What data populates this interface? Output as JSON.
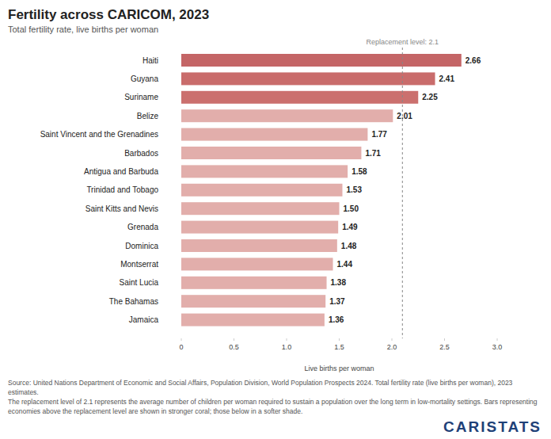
{
  "chart_data": {
    "type": "bar",
    "orientation": "horizontal",
    "title": "Fertility across CARICOM, 2023",
    "subtitle": "Total fertility rate, live births per woman",
    "x_label": "Live births per woman",
    "categories": [
      "Haiti",
      "Guyana",
      "Suriname",
      "Belize",
      "Saint Vincent and the Grenadines",
      "Barbados",
      "Antigua and Barbuda",
      "Trinidad and Tobago",
      "Saint Kitts and Nevis",
      "Grenada",
      "Dominica",
      "Montserrat",
      "Saint Lucia",
      "The Bahamas",
      "Jamaica"
    ],
    "values": [
      2.66,
      2.41,
      2.25,
      2.01,
      1.77,
      1.71,
      1.58,
      1.53,
      1.5,
      1.49,
      1.48,
      1.44,
      1.38,
      1.37,
      1.36
    ],
    "value_labels": [
      "2.66",
      "2.41",
      "2.25",
      "2.01",
      "1.77",
      "1.71",
      "1.58",
      "1.53",
      "1.50",
      "1.49",
      "1.48",
      "1.44",
      "1.38",
      "1.37",
      "1.36"
    ],
    "colors": [
      "#c46566",
      "#c96c6b",
      "#cb706e",
      "#e2aeab",
      "#e2aeab",
      "#e2aeab",
      "#e2aeab",
      "#e2aeab",
      "#e2aeab",
      "#e2aeab",
      "#e2aeab",
      "#e2aeab",
      "#e2aeab",
      "#e2aeab",
      "#e2aeab"
    ],
    "data_labels": true,
    "grid": false,
    "xlim": [
      0,
      3
    ],
    "xticks": [
      0,
      0.5,
      {
        "value": 1,
        "label": "1.0"
      },
      1.5,
      {
        "value": 2,
        "label": "2.0"
      },
      2.5,
      {
        "value": 3,
        "label": "3.0"
      }
    ],
    "annotations": [
      {
        "text": "Replacement level: 2.1",
        "x": 2.1
      }
    ],
    "source": "Source: United Nations Department of Economic and Social Affairs, Population Division, World Population Prospects 2024. Total fertility rate (live births per woman), 2023 estimates.",
    "note": "The replacement level of 2.1 represents the average number of children per woman required to sustain a population over the long term in low-mortality settings. Bars representing economies above the replacement level are shown in stronger coral; those below in a softer shade.",
    "brand": "CARISTATS"
  }
}
